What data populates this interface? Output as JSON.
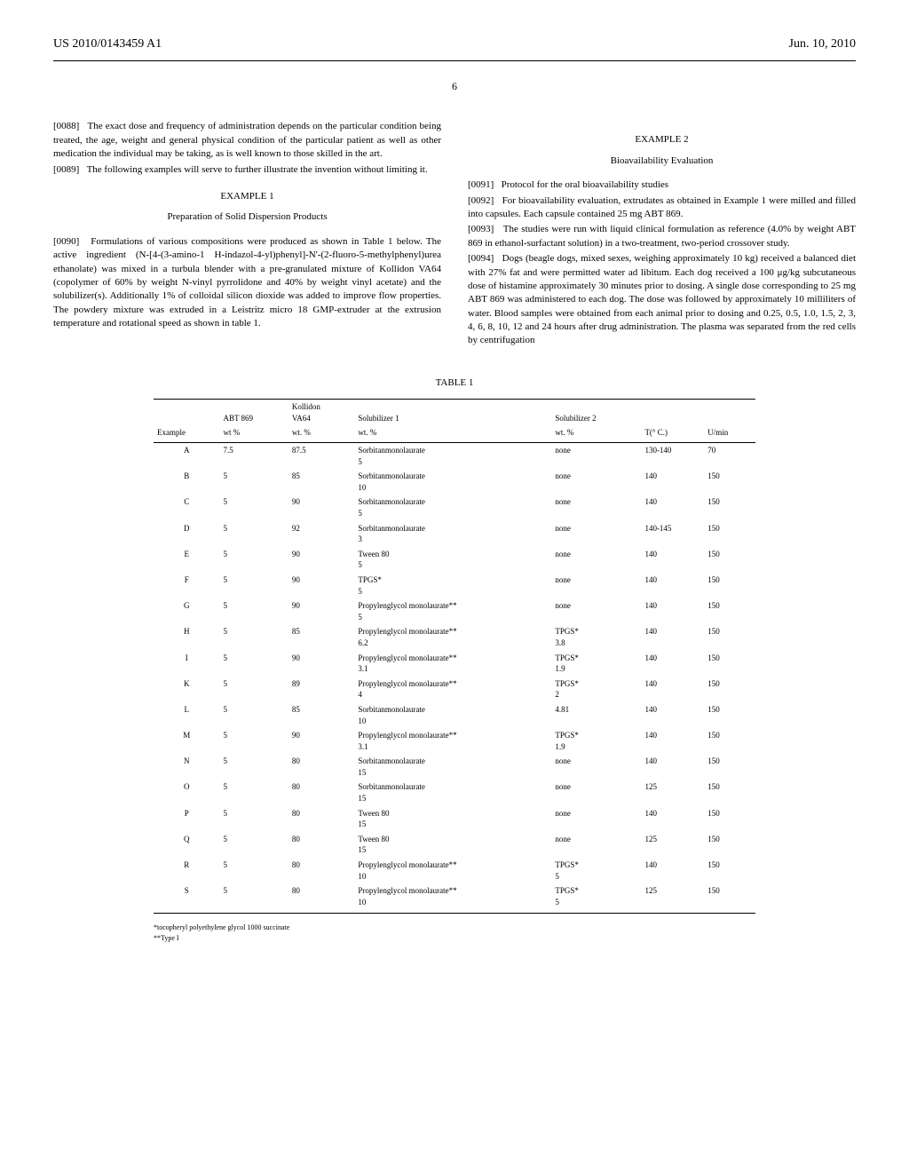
{
  "header": {
    "pubNumber": "US 2010/0143459 A1",
    "pubDate": "Jun. 10, 2010"
  },
  "pageNumber": "6",
  "leftColumn": {
    "para0088": {
      "num": "[0088]",
      "text": "The exact dose and frequency of administration depends on the particular condition being treated, the age, weight and general physical condition of the particular patient as well as other medication the individual may be taking, as is well known to those skilled in the art."
    },
    "para0089": {
      "num": "[0089]",
      "text": "The following examples will serve to further illustrate the invention without limiting it."
    },
    "example1Heading": "EXAMPLE 1",
    "example1Subheading": "Preparation of Solid Dispersion Products",
    "para0090": {
      "num": "[0090]",
      "text": "Formulations of various compositions were produced as shown in Table 1 below. The active ingredient (N-[4-(3-amino-1 H-indazol-4-yl)phenyl]-N'-(2-fluoro-5-methylphenyl)urea ethanolate) was mixed in a turbula blender with a pre-granulated mixture of Kollidon VA64 (copolymer of 60% by weight N-vinyl pyrrolidone and 40% by weight vinyl acetate) and the solubilizer(s). Additionally 1% of colloidal silicon dioxide was added to improve flow properties. The powdery mixture was extruded in a Leistritz micro 18 GMP-extruder at the extrusion temperature and rotational speed as shown in table 1."
    }
  },
  "rightColumn": {
    "example2Heading": "EXAMPLE 2",
    "example2Subheading": "Bioavailability Evaluation",
    "para0091": {
      "num": "[0091]",
      "text": "Protocol for the oral bioavailability studies"
    },
    "para0092": {
      "num": "[0092]",
      "text": "For bioavailability evaluation, extrudates as obtained in Example 1 were milled and filled into capsules. Each capsule contained 25 mg ABT 869."
    },
    "para0093": {
      "num": "[0093]",
      "text": "The studies were run with liquid clinical formulation as reference (4.0% by weight ABT 869 in ethanol-surfactant solution) in a two-treatment, two-period crossover study."
    },
    "para0094": {
      "num": "[0094]",
      "text": "Dogs (beagle dogs, mixed sexes, weighing approximately 10 kg) received a balanced diet with 27% fat and were permitted water ad libitum. Each dog received a 100 μg/kg subcutaneous dose of histamine approximately 30 minutes prior to dosing. A single dose corresponding to 25 mg ABT 869 was administered to each dog. The dose was followed by approximately 10 milliliters of water. Blood samples were obtained from each animal prior to dosing and 0.25, 0.5, 1.0, 1.5, 2, 3, 4, 6, 8, 10, 12 and 24 hours after drug administration. The plasma was separated from the red cells by centrifugation"
    }
  },
  "table": {
    "label": "TABLE 1",
    "headers": {
      "example": "Example",
      "abt869": "ABT 869",
      "abt869_unit": "wt %",
      "kollidon": "Kollidon",
      "va64": "VA64",
      "va64_unit": "wt. %",
      "sol1": "Solubilizer 1",
      "sol1_unit": "wt. %",
      "sol2": "Solubilizer 2",
      "sol2_unit": "wt. %",
      "temp": "T(° C.)",
      "speed": "U/min"
    },
    "rows": [
      {
        "ex": "A",
        "abt": "7.5",
        "va64": "87.5",
        "sol1": "Sorbitanmonolaurate",
        "sol1v": "5",
        "sol2": "none",
        "sol2v": "",
        "t": "130-140",
        "u": "70"
      },
      {
        "ex": "B",
        "abt": "5",
        "va64": "85",
        "sol1": "Sorbitanmonolaurate",
        "sol1v": "10",
        "sol2": "none",
        "sol2v": "",
        "t": "140",
        "u": "150"
      },
      {
        "ex": "C",
        "abt": "5",
        "va64": "90",
        "sol1": "Sorbitanmonolaurate",
        "sol1v": "5",
        "sol2": "none",
        "sol2v": "",
        "t": "140",
        "u": "150"
      },
      {
        "ex": "D",
        "abt": "5",
        "va64": "92",
        "sol1": "Sorbitanmonolaurate",
        "sol1v": "3",
        "sol2": "none",
        "sol2v": "",
        "t": "140-145",
        "u": "150"
      },
      {
        "ex": "E",
        "abt": "5",
        "va64": "90",
        "sol1": "Tween 80",
        "sol1v": "5",
        "sol2": "none",
        "sol2v": "",
        "t": "140",
        "u": "150"
      },
      {
        "ex": "F",
        "abt": "5",
        "va64": "90",
        "sol1": "TPGS*",
        "sol1v": "5",
        "sol2": "none",
        "sol2v": "",
        "t": "140",
        "u": "150"
      },
      {
        "ex": "G",
        "abt": "5",
        "va64": "90",
        "sol1": "Propylenglycol monolaurate**",
        "sol1v": "5",
        "sol2": "none",
        "sol2v": "",
        "t": "140",
        "u": "150"
      },
      {
        "ex": "H",
        "abt": "5",
        "va64": "85",
        "sol1": "Propylenglycol monolaurate**",
        "sol1v": "6.2",
        "sol2": "TPGS*",
        "sol2v": "3.8",
        "t": "140",
        "u": "150"
      },
      {
        "ex": "I",
        "abt": "5",
        "va64": "90",
        "sol1": "Propylenglycol monolaurate**",
        "sol1v": "3.1",
        "sol2": "TPGS*",
        "sol2v": "1.9",
        "t": "140",
        "u": "150"
      },
      {
        "ex": "K",
        "abt": "5",
        "va64": "89",
        "sol1": "Propylenglycol monolaurate**",
        "sol1v": "4",
        "sol2": "TPGS*",
        "sol2v": "2",
        "t": "140",
        "u": "150"
      },
      {
        "ex": "L",
        "abt": "5",
        "va64": "85",
        "sol1": "Sorbitanmonolaurate",
        "sol1v": "10",
        "sol2": "4.81",
        "sol2v": "",
        "t": "140",
        "u": "150"
      },
      {
        "ex": "M",
        "abt": "5",
        "va64": "90",
        "sol1": "Propylenglycol monolaurate**",
        "sol1v": "3.1",
        "sol2": "TPGS*",
        "sol2v": "1.9",
        "t": "140",
        "u": "150"
      },
      {
        "ex": "N",
        "abt": "5",
        "va64": "80",
        "sol1": "Sorbitanmonolaurate",
        "sol1v": "15",
        "sol2": "none",
        "sol2v": "",
        "t": "140",
        "u": "150"
      },
      {
        "ex": "O",
        "abt": "5",
        "va64": "80",
        "sol1": "Sorbitanmonolaurate",
        "sol1v": "15",
        "sol2": "none",
        "sol2v": "",
        "t": "125",
        "u": "150"
      },
      {
        "ex": "P",
        "abt": "5",
        "va64": "80",
        "sol1": "Tween 80",
        "sol1v": "15",
        "sol2": "none",
        "sol2v": "",
        "t": "140",
        "u": "150"
      },
      {
        "ex": "Q",
        "abt": "5",
        "va64": "80",
        "sol1": "Tween 80",
        "sol1v": "15",
        "sol2": "none",
        "sol2v": "",
        "t": "125",
        "u": "150"
      },
      {
        "ex": "R",
        "abt": "5",
        "va64": "80",
        "sol1": "Propylenglycol monolaurate**",
        "sol1v": "10",
        "sol2": "TPGS*",
        "sol2v": "5",
        "t": "140",
        "u": "150"
      },
      {
        "ex": "S",
        "abt": "5",
        "va64": "80",
        "sol1": "Propylenglycol monolaurate**",
        "sol1v": "10",
        "sol2": "TPGS*",
        "sol2v": "5",
        "t": "125",
        "u": "150"
      }
    ],
    "footnotes": {
      "fn1": "*tocopheryl polyethylene glycol 1000 succinate",
      "fn2": "**Type I"
    }
  }
}
